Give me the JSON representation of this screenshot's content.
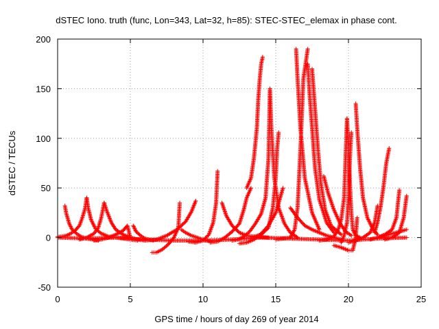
{
  "chart_data": {
    "type": "scatter",
    "title": "dSTEC Iono. truth (func, Lon=343, Lat=32, h=85): STEC-STEC_elemax in phase cont.",
    "xlabel": "GPS time / hours of day 269 of year 2014",
    "ylabel": "dSTEC  / TECUs",
    "xlim": [
      0,
      25
    ],
    "ylim": [
      -50,
      200
    ],
    "xticks": [
      0,
      5,
      10,
      15,
      20,
      25
    ],
    "yticks": [
      -50,
      0,
      50,
      100,
      150,
      200
    ],
    "xtick_labels": [
      "0",
      "5",
      "10",
      "15",
      "20",
      "25"
    ],
    "ytick_labels": [
      "-50",
      "0",
      "50",
      "100",
      "150",
      "200"
    ],
    "grid": true,
    "marker": "plus",
    "color": "#ff0000",
    "series": [
      {
        "x": [
          0.0,
          0.3,
          0.6,
          0.9,
          1.2,
          1.5,
          1.7,
          1.9,
          2.0
        ],
        "y": [
          1,
          1,
          2,
          4,
          7,
          12,
          20,
          30,
          40
        ]
      },
      {
        "x": [
          2.0,
          2.1,
          2.3,
          2.6,
          3.0,
          3.5,
          4.0,
          4.5,
          5.0,
          5.5
        ],
        "y": [
          40,
          30,
          18,
          9,
          4,
          1,
          0,
          -1,
          -2,
          -3
        ]
      },
      {
        "x": [
          0.5,
          0.6,
          0.8,
          1.0,
          1.3,
          1.6,
          2.0,
          2.4,
          2.8
        ],
        "y": [
          32,
          24,
          14,
          8,
          4,
          1,
          -1,
          -2,
          -3
        ]
      },
      {
        "x": [
          1.5,
          2.0,
          2.5,
          2.8,
          3.0,
          3.2
        ],
        "y": [
          -2,
          0,
          4,
          10,
          20,
          35
        ]
      },
      {
        "x": [
          3.2,
          3.4,
          3.7,
          4.0,
          4.5,
          5.0,
          5.5,
          6.0
        ],
        "y": [
          35,
          26,
          15,
          8,
          3,
          0,
          -2,
          -3
        ]
      },
      {
        "x": [
          2.5,
          3.0,
          3.5,
          4.0,
          4.5,
          4.8,
          5.0,
          5.5,
          6.0
        ],
        "y": [
          -3,
          -2,
          0,
          3,
          7,
          12,
          0,
          -2,
          -2
        ]
      },
      {
        "x": [
          5.2,
          5.4,
          5.7,
          6.0,
          6.3,
          6.6
        ],
        "y": [
          12,
          6,
          2,
          -1,
          -2,
          -3
        ]
      },
      {
        "x": [
          6.5,
          6.8,
          7.2,
          7.6,
          8.0,
          8.3,
          8.4
        ],
        "y": [
          -15,
          -15,
          -12,
          -7,
          0,
          10,
          35
        ]
      },
      {
        "x": [
          6.0,
          6.8,
          7.5,
          8.2,
          8.8,
          9.2,
          9.5
        ],
        "y": [
          -3,
          -2,
          2,
          8,
          16,
          26,
          37
        ]
      },
      {
        "x": [
          8.5,
          8.8,
          9.2,
          9.6,
          10.0,
          10.5
        ],
        "y": [
          8,
          5,
          2,
          0,
          -2,
          -4
        ]
      },
      {
        "x": [
          9.0,
          9.5,
          10.0,
          10.4,
          10.7,
          10.9,
          11.0
        ],
        "y": [
          -4,
          -5,
          -3,
          3,
          15,
          35,
          67
        ]
      },
      {
        "x": [
          11.3,
          11.6,
          12.0,
          12.5,
          13.0,
          13.5,
          14.5
        ],
        "y": [
          35,
          22,
          12,
          5,
          2,
          1,
          0
        ]
      },
      {
        "x": [
          10.5,
          11.0,
          11.5,
          12.0,
          12.5,
          12.8,
          13.0,
          13.3
        ],
        "y": [
          -5,
          -4,
          0,
          6,
          14,
          28,
          40,
          50
        ]
      },
      {
        "x": [
          12.0,
          12.4,
          12.8,
          13.2,
          13.6,
          14.0,
          14.3,
          14.5,
          14.6
        ],
        "y": [
          -3,
          -2,
          1,
          6,
          14,
          24,
          40,
          80,
          150
        ]
      },
      {
        "x": [
          13.0,
          13.3,
          13.5,
          13.7,
          13.8,
          13.9,
          14.0,
          14.1
        ],
        "y": [
          50,
          60,
          80,
          110,
          140,
          160,
          175,
          182
        ]
      },
      {
        "x": [
          14.6,
          14.7,
          14.9,
          15.2,
          15.6,
          16.0,
          16.5
        ],
        "y": [
          150,
          110,
          60,
          30,
          14,
          5,
          0
        ]
      },
      {
        "x": [
          13.5,
          14.0,
          14.5,
          14.8,
          15.0,
          15.1,
          15.2
        ],
        "y": [
          1,
          3,
          10,
          30,
          60,
          90,
          106
        ]
      },
      {
        "x": [
          12.5,
          13.0,
          13.5,
          14.0,
          14.5,
          15.0,
          15.5
        ],
        "y": [
          -6,
          -5,
          -2,
          4,
          12,
          25,
          50
        ]
      },
      {
        "x": [
          15.0,
          15.5,
          16.0,
          16.3,
          16.5,
          16.7,
          16.9,
          17.2
        ],
        "y": [
          -2,
          -1,
          0,
          8,
          30,
          90,
          160,
          190
        ]
      },
      {
        "x": [
          16.4,
          16.5,
          16.7,
          17.0,
          17.5,
          18.0
        ],
        "y": [
          190,
          160,
          110,
          60,
          25,
          8
        ]
      },
      {
        "x": [
          17.2,
          17.3,
          17.5,
          17.7,
          18.0,
          18.5,
          19.0
        ],
        "y": [
          175,
          150,
          110,
          70,
          38,
          15,
          5
        ]
      },
      {
        "x": [
          17.5,
          17.7,
          17.9,
          18.1,
          18.4,
          18.8,
          19.5
        ],
        "y": [
          170,
          130,
          90,
          55,
          28,
          12,
          3
        ]
      },
      {
        "x": [
          18.3,
          18.6,
          19.0,
          19.4,
          19.8,
          20.2
        ],
        "y": [
          62,
          45,
          28,
          15,
          6,
          2
        ]
      },
      {
        "x": [
          16.0,
          16.5,
          17.0,
          17.5,
          18.0,
          18.5,
          19.0,
          19.5
        ],
        "y": [
          30,
          20,
          12,
          8,
          5,
          2,
          0,
          -2
        ]
      },
      {
        "x": [
          18.0,
          18.5,
          19.0,
          19.3,
          19.5,
          19.7,
          19.8,
          19.9
        ],
        "y": [
          -3,
          -2,
          1,
          8,
          18,
          40,
          80,
          120
        ]
      },
      {
        "x": [
          19.9,
          20.0,
          20.1,
          20.2,
          20.3,
          20.5,
          20.8
        ],
        "y": [
          120,
          90,
          55,
          25,
          8,
          2,
          0
        ]
      },
      {
        "x": [
          19.5,
          19.7,
          19.9,
          20.0,
          20.1,
          20.2
        ],
        "y": [
          -5,
          2,
          15,
          40,
          80,
          106
        ]
      },
      {
        "x": [
          20.5,
          20.6,
          20.8,
          21.0,
          21.3,
          21.7,
          22.0
        ],
        "y": [
          135,
          110,
          70,
          40,
          20,
          8,
          3
        ]
      },
      {
        "x": [
          19.0,
          19.5,
          20.0,
          20.3,
          20.5,
          20.6
        ],
        "y": [
          -8,
          -10,
          -13,
          -13,
          0,
          20
        ]
      },
      {
        "x": [
          20.0,
          20.5,
          21.0,
          21.5,
          21.8,
          22.0
        ],
        "y": [
          -5,
          -3,
          0,
          5,
          15,
          32
        ]
      },
      {
        "x": [
          21.8,
          22.0,
          22.2,
          22.4,
          22.6,
          22.8
        ],
        "y": [
          5,
          15,
          30,
          50,
          75,
          90
        ]
      },
      {
        "x": [
          22.0,
          22.5,
          23.0,
          23.5,
          24.0
        ],
        "y": [
          0,
          2,
          4,
          6,
          8
        ]
      },
      {
        "x": [
          21.5,
          22.0,
          22.5,
          23.0,
          23.3,
          23.5
        ],
        "y": [
          -2,
          0,
          3,
          8,
          20,
          48
        ]
      },
      {
        "x": [
          22.5,
          23.0,
          23.5,
          23.8,
          24.0
        ],
        "y": [
          -2,
          0,
          5,
          20,
          42
        ]
      },
      {
        "x": [
          0.0,
          2.0,
          4.0,
          6.0,
          8.0,
          10.0,
          12.0,
          14.0,
          16.0,
          18.0,
          20.0,
          22.0,
          24.0
        ],
        "y": [
          0,
          -1,
          0,
          -2,
          -3,
          -3,
          -2,
          0,
          -1,
          -2,
          -3,
          -1,
          0
        ]
      }
    ]
  }
}
